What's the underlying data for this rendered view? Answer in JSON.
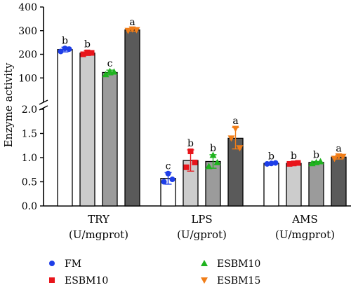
{
  "chart_data": {
    "type": "bar",
    "ylabel": "Enzyme activity",
    "broken_axis": {
      "upper_ticks": [
        100,
        200,
        300,
        400
      ],
      "lower_ticks": [
        "0.0",
        "0.5",
        "1.0",
        "1.5",
        "2.0"
      ]
    },
    "groups": [
      {
        "line1": "TRY",
        "line2": "(U/mgprot)"
      },
      {
        "line1": "LPS",
        "line2": "(U/gprot)"
      },
      {
        "line1": "AMS",
        "line2": "(U/mgprot)"
      }
    ],
    "series": [
      {
        "name": "FM",
        "fill": "#ffffff",
        "point_color": "#1e3ee8",
        "marker": "circle"
      },
      {
        "name": "ESBM10",
        "fill": "#cccccc",
        "point_color": "#e8151b",
        "marker": "square"
      },
      {
        "name": "ESBM10",
        "fill": "#9b9b9b",
        "point_color": "#1fb31f",
        "marker": "triangle-up"
      },
      {
        "name": "ESBM15",
        "fill": "#5a5a5a",
        "point_color": "#f07d18",
        "marker": "triangle-down"
      }
    ],
    "values": [
      [
        220,
        205,
        123,
        303
      ],
      [
        0.57,
        0.94,
        0.92,
        1.4
      ],
      [
        0.88,
        0.88,
        0.9,
        1.01
      ]
    ],
    "errors": [
      [
        10,
        10,
        10,
        5
      ],
      [
        0.12,
        0.22,
        0.14,
        0.22
      ],
      [
        0.01,
        0.02,
        0.02,
        0.04
      ]
    ],
    "points": [
      [
        [
          212,
          225,
          222
        ],
        [
          200,
          208,
          206
        ],
        [
          115,
          128,
          126
        ],
        [
          300,
          306,
          303
        ]
      ],
      [
        [
          0.5,
          0.67,
          0.55
        ],
        [
          0.8,
          1.13,
          0.9
        ],
        [
          0.82,
          1.05,
          0.9
        ],
        [
          1.4,
          1.6,
          1.2
        ]
      ],
      [
        [
          0.87,
          0.88,
          0.89
        ],
        [
          0.87,
          0.88,
          0.89
        ],
        [
          0.88,
          0.9,
          0.92
        ],
        [
          0.98,
          1.03,
          1.02
        ]
      ]
    ],
    "significance": [
      [
        "b",
        "b",
        "c",
        "a"
      ],
      [
        "c",
        "b",
        "b",
        "a"
      ],
      [
        "b",
        "b",
        "b",
        "a"
      ]
    ],
    "legend_position": "bottom"
  }
}
